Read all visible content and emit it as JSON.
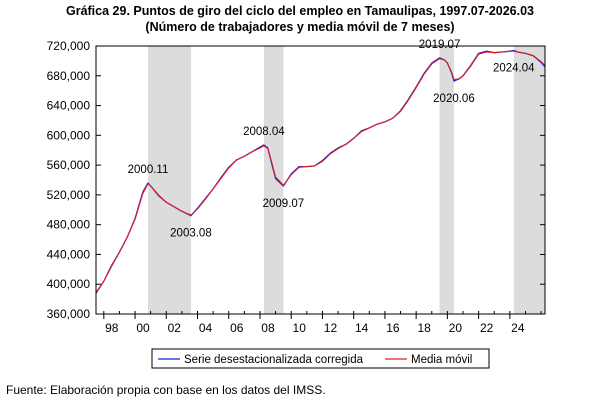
{
  "chart_data": {
    "type": "line",
    "title": "Gráfica 29. Puntos de giro del ciclo del empleo en Tamaulipas, 1997.07-2026.03",
    "subtitle": "(Número de trabajadores y media móvil de 7 meses)",
    "xlabel": "",
    "ylabel": "",
    "xlim": [
      1997.5,
      2026.25
    ],
    "ylim": [
      360000,
      720000
    ],
    "y_ticks": [
      360000,
      400000,
      440000,
      480000,
      520000,
      560000,
      600000,
      640000,
      680000,
      720000
    ],
    "y_tick_labels": [
      "360,000",
      "400,000",
      "440,000",
      "480,000",
      "520,000",
      "560,000",
      "600,000",
      "640,000",
      "680,000",
      "720,000"
    ],
    "x_ticks": [
      1998,
      2000,
      2002,
      2004,
      2006,
      2008,
      2010,
      2012,
      2014,
      2016,
      2018,
      2020,
      2022,
      2024
    ],
    "x_tick_labels": [
      "98",
      "00",
      "02",
      "04",
      "06",
      "08",
      "10",
      "12",
      "14",
      "16",
      "18",
      "20",
      "22",
      "24"
    ],
    "grid": false,
    "legend_position": "bottom",
    "recession_bands": [
      {
        "start": 2000.83,
        "end": 2003.58
      },
      {
        "start": 2008.25,
        "end": 2009.5
      },
      {
        "start": 2019.5,
        "end": 2020.42
      },
      {
        "start": 2024.25,
        "end": 2026.25
      }
    ],
    "turning_points": [
      {
        "label": "2000.11",
        "x": 2000.83,
        "y": 536000,
        "position": "above"
      },
      {
        "label": "2003.08",
        "x": 2003.58,
        "y": 492000,
        "position": "below"
      },
      {
        "label": "2008.04",
        "x": 2008.25,
        "y": 587000,
        "position": "above"
      },
      {
        "label": "2009.07",
        "x": 2009.5,
        "y": 532000,
        "position": "below"
      },
      {
        "label": "2019.07",
        "x": 2019.5,
        "y": 704000,
        "position": "above"
      },
      {
        "label": "2020.06",
        "x": 2020.42,
        "y": 673000,
        "position": "below"
      },
      {
        "label": "2024.04",
        "x": 2024.25,
        "y": 714000,
        "position": "below"
      }
    ],
    "series": [
      {
        "name": "Serie desestacionalizada corregida",
        "color": "#1f1fe0",
        "x": [
          1997.5,
          1998.0,
          1998.5,
          1999.0,
          1999.5,
          2000.0,
          2000.5,
          2000.83,
          2001.0,
          2001.5,
          2002.0,
          2002.5,
          2003.0,
          2003.58,
          2004.0,
          2004.5,
          2005.0,
          2005.5,
          2006.0,
          2006.5,
          2007.0,
          2007.5,
          2008.0,
          2008.25,
          2008.5,
          2008.75,
          2009.0,
          2009.5,
          2010.0,
          2010.5,
          2011.0,
          2011.5,
          2012.0,
          2012.5,
          2013.0,
          2013.5,
          2014.0,
          2014.5,
          2015.0,
          2015.5,
          2016.0,
          2016.5,
          2017.0,
          2017.5,
          2018.0,
          2018.5,
          2019.0,
          2019.5,
          2019.83,
          2020.0,
          2020.25,
          2020.42,
          2020.75,
          2021.0,
          2021.5,
          2022.0,
          2022.5,
          2023.0,
          2023.5,
          2024.0,
          2024.25,
          2024.5,
          2025.0,
          2025.5,
          2026.0,
          2026.25
        ],
        "y": [
          388000,
          404000,
          425000,
          443000,
          463000,
          488000,
          524000,
          536000,
          532000,
          519000,
          510000,
          504000,
          498000,
          492000,
          502000,
          515000,
          528000,
          543000,
          557000,
          567000,
          572000,
          578000,
          584000,
          587000,
          583000,
          562000,
          542000,
          532000,
          548000,
          558000,
          558000,
          559000,
          566000,
          576000,
          583000,
          588000,
          596000,
          606000,
          610000,
          615000,
          618000,
          623000,
          633000,
          648000,
          665000,
          683000,
          697000,
          704000,
          701000,
          697000,
          685000,
          673000,
          676000,
          680000,
          694000,
          710000,
          713000,
          711000,
          712000,
          713000,
          714000,
          712000,
          710000,
          707000,
          698000,
          692000
        ]
      },
      {
        "name": "Media móvil",
        "color": "#e02020",
        "x": [
          1997.5,
          1998.0,
          1998.5,
          1999.0,
          1999.5,
          2000.0,
          2000.5,
          2000.83,
          2001.0,
          2001.5,
          2002.0,
          2002.5,
          2003.0,
          2003.58,
          2004.0,
          2004.5,
          2005.0,
          2005.5,
          2006.0,
          2006.5,
          2007.0,
          2007.5,
          2008.0,
          2008.25,
          2008.5,
          2008.75,
          2009.0,
          2009.5,
          2010.0,
          2010.5,
          2011.0,
          2011.5,
          2012.0,
          2012.5,
          2013.0,
          2013.5,
          2014.0,
          2014.5,
          2015.0,
          2015.5,
          2016.0,
          2016.5,
          2017.0,
          2017.5,
          2018.0,
          2018.5,
          2019.0,
          2019.5,
          2019.83,
          2020.0,
          2020.25,
          2020.42,
          2020.75,
          2021.0,
          2021.5,
          2022.0,
          2022.5,
          2023.0,
          2023.5,
          2024.0,
          2024.25,
          2024.5,
          2025.0,
          2025.5,
          2026.0,
          2026.25
        ],
        "y": [
          389000,
          404000,
          424000,
          443000,
          463000,
          487000,
          522000,
          535000,
          532000,
          520000,
          510000,
          504000,
          498000,
          493000,
          501000,
          514000,
          528000,
          542000,
          556000,
          567000,
          572000,
          578000,
          583000,
          586000,
          582000,
          564000,
          544000,
          533000,
          547000,
          557000,
          558000,
          559000,
          565000,
          575000,
          582000,
          588000,
          596000,
          605000,
          610000,
          615000,
          618000,
          623000,
          632000,
          647000,
          664000,
          682000,
          696000,
          703000,
          701000,
          697000,
          686000,
          675000,
          676000,
          680000,
          693000,
          709000,
          712000,
          711000,
          712000,
          713000,
          713000,
          712000,
          710000,
          707000,
          699000,
          694000
        ]
      }
    ]
  },
  "footer": {
    "source": "Fuente: Elaboración propia con base en los datos del IMSS."
  }
}
